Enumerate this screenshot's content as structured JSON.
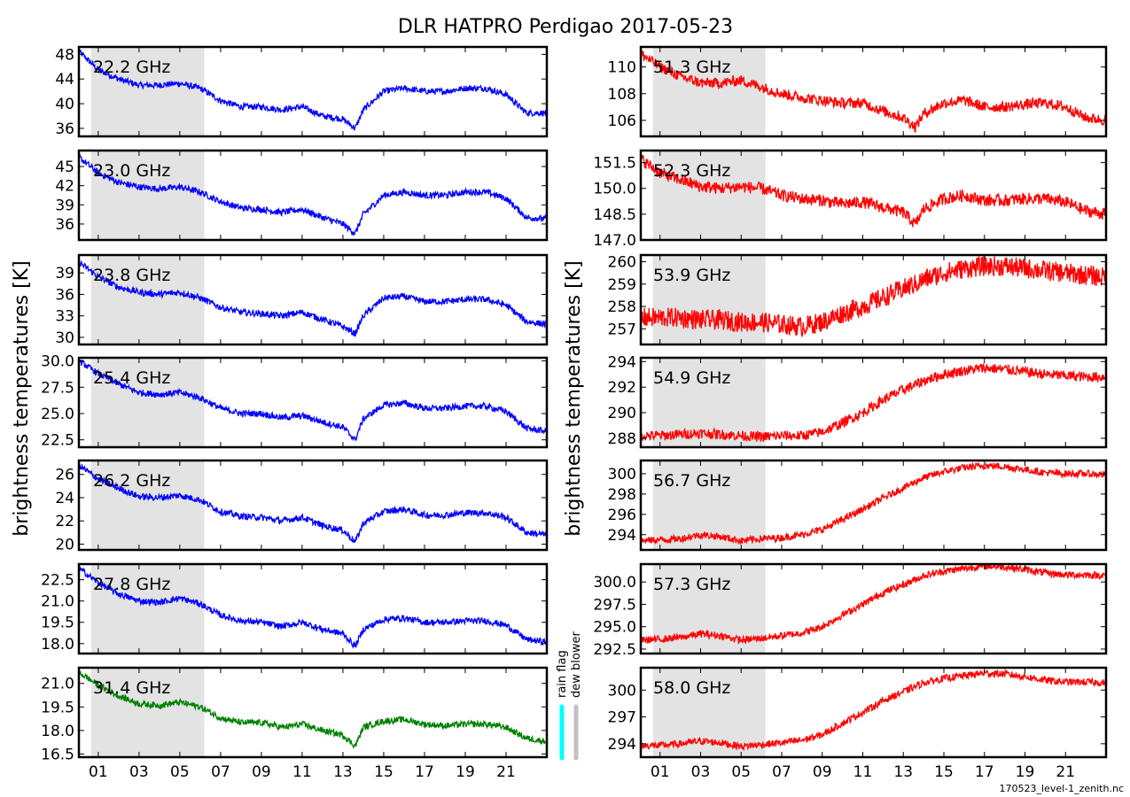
{
  "chart_data": {
    "type": "line",
    "title": "DLR HATPRO  Perdigao  2017-05-23",
    "ylabel": "brightness temperatures [K]",
    "xlim": [
      0.05,
      23.0
    ],
    "x_tick_values": [
      1,
      3,
      5,
      7,
      9,
      11,
      13,
      15,
      17,
      19,
      21
    ],
    "x_tick_labels": [
      "01",
      "03",
      "05",
      "07",
      "09",
      "11",
      "13",
      "15",
      "17",
      "19",
      "21"
    ],
    "shaded_interval": [
      0.65,
      6.2
    ],
    "shade_color": "#e3e3e3",
    "flags": {
      "rain_flag": {
        "label": "rain flag",
        "color": "#00ffff"
      },
      "dew_blower": {
        "label": "dew blower",
        "color": "#c0c0c0"
      }
    },
    "footer_file": "170523_level-1_zenith.nc",
    "x": [
      0.05,
      1,
      2,
      3,
      4,
      5,
      6,
      7,
      8,
      9,
      10,
      11,
      12,
      13,
      13.6,
      14,
      15,
      16,
      17,
      18,
      19,
      20,
      21,
      22,
      23
    ],
    "panels": [
      {
        "column": "left",
        "label": "22.2 GHz",
        "color": "#0000ff",
        "ylim": [
          34.7,
          49.2
        ],
        "yticks": [
          "36",
          "40",
          "44",
          "48"
        ],
        "noise": 0.5,
        "values": [
          48.5,
          45.5,
          44,
          43,
          43,
          43.3,
          42.5,
          40.5,
          39.5,
          39.5,
          39,
          39.5,
          38,
          37.5,
          36,
          39,
          42,
          42.5,
          42,
          42,
          42.5,
          42.5,
          41.5,
          38.5,
          38.5
        ]
      },
      {
        "column": "left",
        "label": "23.0 GHz",
        "color": "#0000ff",
        "ylim": [
          33.5,
          47.5
        ],
        "yticks": [
          "36",
          "39",
          "42",
          "45"
        ],
        "noise": 0.5,
        "values": [
          46.5,
          44,
          42.5,
          41.8,
          41.5,
          41.8,
          41,
          39.5,
          38.5,
          38.3,
          37.8,
          38.3,
          37,
          36,
          34.5,
          37.5,
          40.5,
          41,
          40.5,
          40.5,
          41,
          41,
          40,
          37,
          36.8
        ]
      },
      {
        "column": "left",
        "label": "23.8 GHz",
        "color": "#0000ff",
        "ylim": [
          29,
          41.5
        ],
        "yticks": [
          "30",
          "33",
          "36",
          "39"
        ],
        "noise": 0.45,
        "values": [
          40.5,
          38.5,
          37,
          36.3,
          36,
          36.3,
          35.5,
          34.2,
          33.5,
          33.3,
          33,
          33.5,
          32.5,
          31.5,
          30.5,
          33,
          35.5,
          35.7,
          35,
          35,
          35.3,
          35.3,
          34.5,
          32.2,
          31.8
        ]
      },
      {
        "column": "left",
        "label": "25.4 GHz",
        "color": "#0000ff",
        "ylim": [
          21.8,
          30.3
        ],
        "yticks": [
          "22.5",
          "25.0",
          "27.5",
          "30.0"
        ],
        "noise": 0.3,
        "values": [
          30,
          28.8,
          27.8,
          27,
          26.8,
          27,
          26.5,
          25.5,
          25,
          25,
          24.6,
          24.8,
          24.2,
          23.7,
          22.5,
          24.5,
          25.8,
          26,
          25.5,
          25.5,
          25.7,
          25.7,
          25.2,
          23.6,
          23.3
        ]
      },
      {
        "column": "left",
        "label": "26.2 GHz",
        "color": "#0000ff",
        "ylim": [
          19.5,
          27.2
        ],
        "yticks": [
          "20",
          "22",
          "24",
          "26"
        ],
        "noise": 0.28,
        "values": [
          26.8,
          25.6,
          24.8,
          24.1,
          24,
          24.2,
          23.8,
          22.8,
          22.4,
          22.3,
          22,
          22.3,
          21.6,
          21.2,
          20.2,
          21.8,
          22.8,
          23,
          22.5,
          22.5,
          22.7,
          22.7,
          22.3,
          21,
          20.8
        ]
      },
      {
        "column": "left",
        "label": "27.8 GHz",
        "color": "#0000ff",
        "ylim": [
          17.3,
          23.6
        ],
        "yticks": [
          "18.0",
          "19.5",
          "21.0",
          "22.5"
        ],
        "noise": 0.22,
        "values": [
          23.3,
          22.3,
          21.5,
          21,
          20.9,
          21.2,
          20.8,
          20,
          19.6,
          19.5,
          19.2,
          19.5,
          19,
          18.7,
          17.8,
          19,
          19.7,
          19.8,
          19.5,
          19.5,
          19.6,
          19.6,
          19.3,
          18.3,
          18.1
        ]
      },
      {
        "column": "left",
        "label": "31.4 GHz",
        "color": "#008000",
        "ylim": [
          16.3,
          22
        ],
        "yticks": [
          "16.5",
          "18.0",
          "19.5",
          "21.0"
        ],
        "noise": 0.2,
        "values": [
          21.7,
          20.9,
          20.2,
          19.7,
          19.6,
          19.8,
          19.5,
          18.8,
          18.5,
          18.5,
          18.2,
          18.4,
          18,
          17.7,
          17,
          18.2,
          18.6,
          18.7,
          18.4,
          18.3,
          18.4,
          18.4,
          18.2,
          17.5,
          17.3
        ]
      },
      {
        "column": "right",
        "label": "51.3 GHz",
        "color": "#ff0000",
        "ylim": [
          104.8,
          111.5
        ],
        "yticks": [
          "106",
          "108",
          "110"
        ],
        "noise": 0.4,
        "values": [
          111,
          110,
          109.3,
          108.8,
          108.8,
          109,
          108.5,
          108,
          107.7,
          107.5,
          107.3,
          107.3,
          106.7,
          106.2,
          105.5,
          106.5,
          107.3,
          107.5,
          107,
          107,
          107.2,
          107.3,
          107,
          106.2,
          106
        ]
      },
      {
        "column": "right",
        "label": "52.3 GHz",
        "color": "#ff0000",
        "ylim": [
          147,
          152.2
        ],
        "yticks": [
          "147.0",
          "148.5",
          "150.0",
          "151.5"
        ],
        "noise": 0.35,
        "values": [
          151.7,
          150.9,
          150.5,
          150.1,
          150,
          150.1,
          150,
          149.6,
          149.4,
          149.3,
          149.1,
          149.2,
          148.9,
          148.6,
          147.9,
          148.8,
          149.4,
          149.6,
          149.3,
          149.3,
          149.4,
          149.4,
          149.2,
          148.7,
          148.5
        ]
      },
      {
        "column": "right",
        "label": "53.9 GHz",
        "color": "#ff0000",
        "ylim": [
          256.3,
          260.3
        ],
        "yticks": [
          "257",
          "258",
          "259",
          "260"
        ],
        "noise": 0.45,
        "values": [
          257.5,
          257.5,
          257.5,
          257.4,
          257.4,
          257.3,
          257.3,
          257.2,
          257.1,
          257.3,
          257.7,
          258,
          258.4,
          258.8,
          259,
          259.2,
          259.5,
          259.7,
          259.8,
          259.8,
          259.7,
          259.6,
          259.5,
          259.4,
          259.3
        ]
      },
      {
        "column": "right",
        "label": "54.9 GHz",
        "color": "#ff0000",
        "ylim": [
          287.3,
          294.3
        ],
        "yticks": [
          "288",
          "290",
          "292",
          "294"
        ],
        "noise": 0.4,
        "values": [
          288.2,
          288.2,
          288.3,
          288.4,
          288.3,
          288.2,
          288.1,
          288.2,
          288.2,
          288.5,
          289.2,
          290,
          291,
          291.8,
          292.2,
          292.5,
          293,
          293.3,
          293.5,
          293.4,
          293.2,
          293,
          292.9,
          292.8,
          292.8
        ]
      },
      {
        "column": "right",
        "label": "56.7 GHz",
        "color": "#ff0000",
        "ylim": [
          292.5,
          301.3
        ],
        "yticks": [
          "294",
          "296",
          "298",
          "300"
        ],
        "noise": 0.35,
        "values": [
          293.4,
          293.5,
          293.6,
          294,
          293.8,
          293.4,
          293.6,
          293.7,
          294,
          294.5,
          295.5,
          296.5,
          297.6,
          298.6,
          299.2,
          299.6,
          300.2,
          300.6,
          300.8,
          300.7,
          300.4,
          300.1,
          300,
          300,
          299.9
        ]
      },
      {
        "column": "right",
        "label": "57.3 GHz",
        "color": "#ff0000",
        "ylim": [
          292,
          302
        ],
        "yticks": [
          "292.5",
          "295.0",
          "297.5",
          "300.0"
        ],
        "noise": 0.4,
        "values": [
          293.5,
          293.6,
          293.8,
          294.2,
          294,
          293.5,
          293.7,
          294,
          294.3,
          295,
          296.3,
          297.5,
          298.8,
          299.7,
          300.3,
          300.7,
          301.2,
          301.5,
          301.8,
          301.7,
          301.4,
          301,
          300.8,
          300.8,
          300.7
        ]
      },
      {
        "column": "right",
        "label": "58.0 GHz",
        "color": "#ff0000",
        "ylim": [
          292.5,
          302.5
        ],
        "yticks": [
          "294",
          "297",
          "300"
        ],
        "noise": 0.4,
        "values": [
          293.8,
          293.8,
          294,
          294.3,
          294.1,
          293.7,
          293.9,
          294.1,
          294.4,
          295,
          296.3,
          297.5,
          298.8,
          299.8,
          300.4,
          300.8,
          301.3,
          301.6,
          301.9,
          301.8,
          301.5,
          301.1,
          300.9,
          300.9,
          300.8
        ]
      }
    ]
  }
}
